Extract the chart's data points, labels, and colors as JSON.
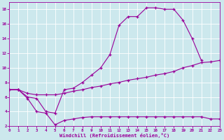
{
  "background_color": "#cce8ed",
  "line_color": "#990099",
  "grid_color": "#b8d8e0",
  "xlim": [
    0,
    23
  ],
  "ylim": [
    2,
    19
  ],
  "yticks": [
    2,
    4,
    6,
    8,
    10,
    12,
    14,
    16,
    18
  ],
  "xticks": [
    0,
    1,
    2,
    3,
    4,
    5,
    6,
    7,
    8,
    9,
    10,
    11,
    12,
    13,
    14,
    15,
    16,
    17,
    18,
    19,
    20,
    21,
    22,
    23
  ],
  "xlabel": "Windchill (Refroidissement éolien,°C)",
  "c1_x": [
    0,
    1,
    2,
    3,
    4,
    5,
    6,
    7,
    8,
    9,
    10,
    11,
    12,
    13,
    14,
    15,
    16,
    17,
    18,
    19,
    20,
    21
  ],
  "c1_y": [
    7,
    7,
    6,
    5.8,
    4.0,
    3.8,
    7.0,
    7.2,
    8.0,
    9.0,
    10.0,
    11.8,
    15.8,
    17.0,
    17.0,
    18.2,
    18.2,
    18.0,
    18.0,
    16.5,
    14.0,
    11.0
  ],
  "c2_x": [
    0,
    1,
    2,
    3,
    4,
    5,
    6,
    7,
    8,
    9,
    10,
    11,
    12,
    13,
    14,
    15,
    16,
    17,
    18,
    19,
    20,
    21,
    22,
    23
  ],
  "c2_y": [
    7.0,
    7.0,
    6.5,
    6.3,
    6.3,
    6.3,
    6.5,
    6.8,
    7.0,
    7.3,
    7.5,
    7.8,
    8.0,
    8.3,
    8.5,
    8.7,
    9.0,
    9.2,
    9.5,
    10.0,
    10.3,
    10.7,
    10.8,
    11.0
  ],
  "c3_x": [
    0,
    1,
    2,
    3,
    4,
    5,
    6,
    7,
    8,
    9,
    10,
    11,
    12,
    13,
    14,
    15,
    16,
    17,
    18,
    19,
    20,
    21,
    22,
    23
  ],
  "c3_y": [
    7.0,
    7.0,
    5.8,
    4.0,
    3.8,
    2.2,
    2.8,
    3.0,
    3.2,
    3.3,
    3.3,
    3.3,
    3.3,
    3.3,
    3.3,
    3.3,
    3.3,
    3.3,
    3.3,
    3.3,
    3.3,
    3.3,
    3.0,
    3.0
  ]
}
